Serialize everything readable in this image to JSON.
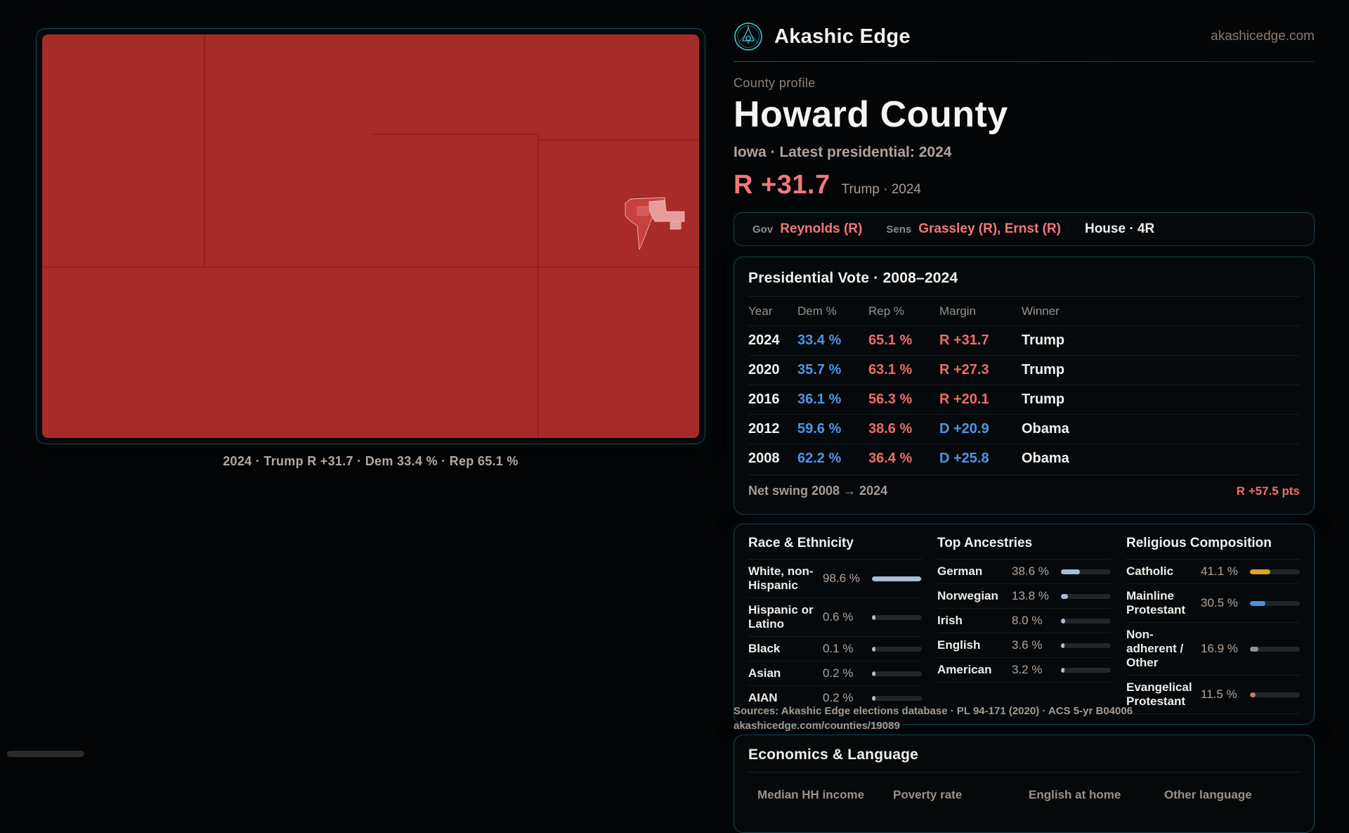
{
  "brand": {
    "name": "Akashic Edge",
    "domain": "akashicedge.com"
  },
  "profile": {
    "eyebrow": "County profile",
    "county": "Howard County",
    "context": "Iowa · Latest presidential: 2024",
    "margin": "R +31.7",
    "margin_note": "Trump · 2024"
  },
  "officials": {
    "gov_label": "Gov",
    "gov_value": "Reynolds (R)",
    "sens_label": "Sens",
    "sens_value": "Grassley (R), Ernst (R)",
    "house_value": "House · 4R"
  },
  "map": {
    "caption": "2024 · Trump R +31.7 · Dem 33.4 % · Rep 65.1 %"
  },
  "vote_table": {
    "title": "Presidential Vote · 2008–2024",
    "columns": [
      "Year",
      "Dem %",
      "Rep %",
      "Margin",
      "Winner"
    ],
    "rows": [
      {
        "year": "2024",
        "dem": "33.4 %",
        "rep": "65.1 %",
        "margin": "R +31.7",
        "margin_color": "#ee6b6e",
        "winner": "Trump"
      },
      {
        "year": "2020",
        "dem": "35.7 %",
        "rep": "63.1 %",
        "margin": "R +27.3",
        "margin_color": "#ee6b6e",
        "winner": "Trump"
      },
      {
        "year": "2016",
        "dem": "36.1 %",
        "rep": "56.3 %",
        "margin": "R +20.1",
        "margin_color": "#ee6b6e",
        "winner": "Trump"
      },
      {
        "year": "2012",
        "dem": "59.6 %",
        "rep": "38.6 %",
        "margin": "D +20.9",
        "margin_color": "#4e95e6",
        "winner": "Obama"
      },
      {
        "year": "2008",
        "dem": "62.2 %",
        "rep": "36.4 %",
        "margin": "D +25.8",
        "margin_color": "#4e95e6",
        "winner": "Obama"
      }
    ],
    "net_swing_label": "Net swing 2008 → 2024",
    "net_swing_value": "R +57.5 pts"
  },
  "demographics": {
    "race": {
      "title": "Race & Ethnicity",
      "rows": [
        {
          "label": "White, non-Hispanic",
          "value": "98.6 %",
          "pct": 98.6,
          "bar_color": "#a9bdd4"
        },
        {
          "label": "Hispanic or Latino",
          "value": "0.6 %",
          "pct": 0.6,
          "bar_color": "#a9bdd4"
        },
        {
          "label": "Black",
          "value": "0.1 %",
          "pct": 0.1,
          "bar_color": "#a9bdd4"
        },
        {
          "label": "Asian",
          "value": "0.2 %",
          "pct": 0.2,
          "bar_color": "#a9bdd4"
        },
        {
          "label": "AIAN",
          "value": "0.2 %",
          "pct": 0.2,
          "bar_color": "#a9bdd4"
        }
      ]
    },
    "ancestries": {
      "title": "Top Ancestries",
      "rows": [
        {
          "label": "German",
          "value": "38.6 %",
          "pct": 38.6,
          "bar_color": "#a9bdd4"
        },
        {
          "label": "Norwegian",
          "value": "13.8 %",
          "pct": 13.8,
          "bar_color": "#a9bdd4"
        },
        {
          "label": "Irish",
          "value": "8.0 %",
          "pct": 8.0,
          "bar_color": "#a9bdd4"
        },
        {
          "label": "English",
          "value": "3.6 %",
          "pct": 3.6,
          "bar_color": "#a9bdd4"
        },
        {
          "label": "American",
          "value": "3.2 %",
          "pct": 3.2,
          "bar_color": "#a9bdd4"
        }
      ]
    },
    "religion": {
      "title": "Religious Composition",
      "rows": [
        {
          "label": "Catholic",
          "value": "41.1 %",
          "pct": 41.1,
          "bar_color": "#d9a62b"
        },
        {
          "label": "Mainline Protestant",
          "value": "30.5 %",
          "pct": 30.5,
          "bar_color": "#4a90dd"
        },
        {
          "label": "Non-adherent / Other",
          "value": "16.9 %",
          "pct": 16.9,
          "bar_color": "#8e939b"
        },
        {
          "label": "Evangelical Protestant",
          "value": "11.5 %",
          "pct": 11.5,
          "bar_color": "#d96f6b"
        }
      ]
    }
  },
  "economics": {
    "title": "Economics & Language",
    "columns": [
      "Median HH income",
      "Poverty rate",
      "English at home",
      "Other language"
    ]
  },
  "footer": {
    "sources": "Sources: Akashic Edge elections database · PL 94-171 (2020) · ACS 5-yr B04006",
    "permalink": "akashicedge.com/counties/19089"
  }
}
